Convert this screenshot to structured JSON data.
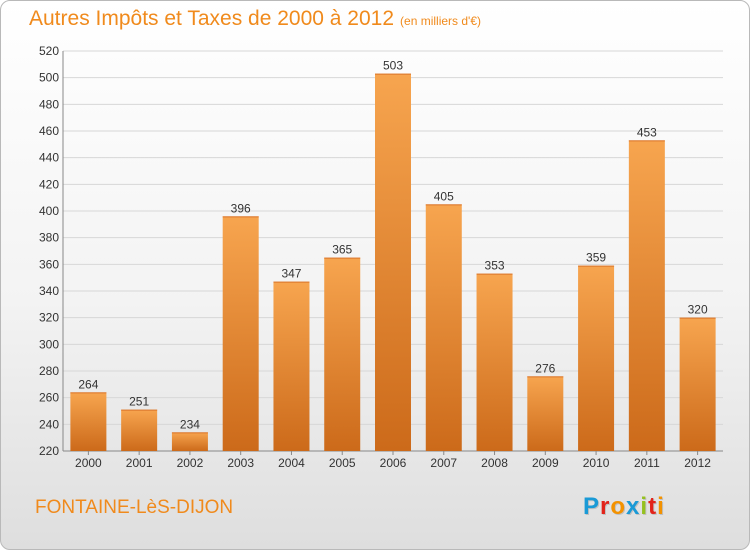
{
  "title": "Autres Impôts et Taxes de 2000 à 2012",
  "unit": "(en milliers d'€)",
  "footer": {
    "city": "FONTAINE-LèS-DIJON"
  },
  "logo": {
    "text": "Proxiti",
    "letters": [
      {
        "char": "P",
        "color": "#1a9ad6"
      },
      {
        "char": "r",
        "color": "#e2231a"
      },
      {
        "char": "o",
        "color": "#f39200"
      },
      {
        "char": "x",
        "color": "#1a9ad6"
      },
      {
        "char": "i",
        "color": "#95c11f"
      },
      {
        "char": "t",
        "color": "#e2231a"
      },
      {
        "char": "i",
        "color": "#f39200"
      }
    ]
  },
  "colors": {
    "accent": "#f08a1c",
    "bar_light": "#f7a54f",
    "bar_dark": "#cc6a1a"
  },
  "chart_data": {
    "type": "bar",
    "title": "Autres Impôts et Taxes de 2000 à 2012",
    "categories": [
      "2000",
      "2001",
      "2002",
      "2003",
      "2004",
      "2005",
      "2006",
      "2007",
      "2008",
      "2009",
      "2010",
      "2011",
      "2012"
    ],
    "values": [
      264,
      251,
      234,
      396,
      347,
      365,
      503,
      405,
      353,
      276,
      359,
      453,
      320
    ],
    "ylim": [
      220,
      520
    ],
    "yticks": [
      220,
      240,
      260,
      280,
      300,
      320,
      340,
      360,
      380,
      400,
      420,
      440,
      460,
      480,
      500,
      520
    ],
    "grid": true,
    "legend": "none"
  }
}
